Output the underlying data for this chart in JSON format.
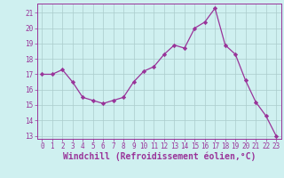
{
  "x": [
    0,
    1,
    2,
    3,
    4,
    5,
    6,
    7,
    8,
    9,
    10,
    11,
    12,
    13,
    14,
    15,
    16,
    17,
    18,
    19,
    20,
    21,
    22,
    23
  ],
  "y": [
    17.0,
    17.0,
    17.3,
    16.5,
    15.5,
    15.3,
    15.1,
    15.3,
    15.5,
    16.5,
    17.2,
    17.5,
    18.3,
    18.9,
    18.7,
    20.0,
    20.4,
    21.3,
    18.9,
    18.3,
    16.6,
    15.2,
    14.3,
    13.0
  ],
  "line_color": "#993399",
  "marker": "D",
  "marker_size": 2.2,
  "bg_color": "#cff0f0",
  "grid_color": "#aacccc",
  "xlabel": "Windchill (Refroidissement éolien,°C)",
  "xlim": [
    -0.5,
    23.5
  ],
  "ylim": [
    12.8,
    21.6
  ],
  "yticks": [
    13,
    14,
    15,
    16,
    17,
    18,
    19,
    20,
    21
  ],
  "xticks": [
    0,
    1,
    2,
    3,
    4,
    5,
    6,
    7,
    8,
    9,
    10,
    11,
    12,
    13,
    14,
    15,
    16,
    17,
    18,
    19,
    20,
    21,
    22,
    23
  ],
  "tick_fontsize": 5.5,
  "label_fontsize": 7.0
}
